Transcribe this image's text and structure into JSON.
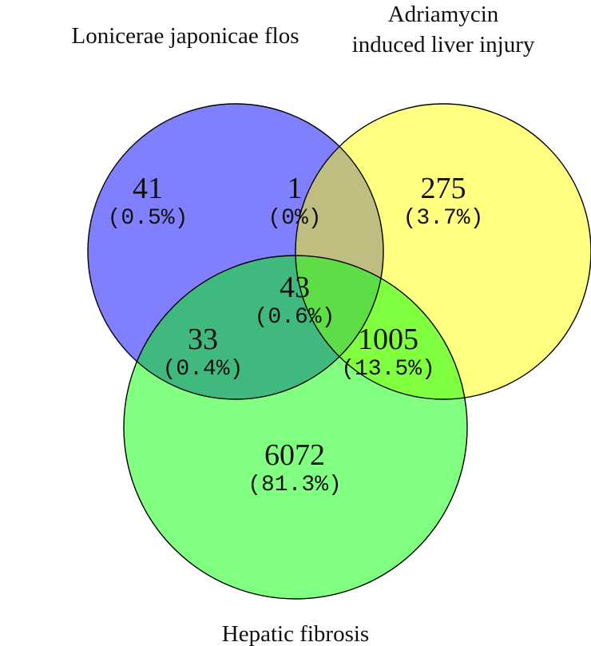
{
  "sets": [
    {
      "name": "Lonicerae japonicae flos",
      "color": "#8080ff"
    },
    {
      "name": "Adriamycin induced liver injury",
      "name_lines": [
        "Adriamycin",
        "induced liver injury"
      ],
      "color": "#ffff80"
    },
    {
      "name": "Hepatic fibrosis",
      "color": "#80ff80"
    }
  ],
  "regions": {
    "flos_only": {
      "count": "41",
      "percent": "(0.5%)",
      "color": "#7f7fff"
    },
    "flos_liver": {
      "count": "1",
      "percent": "(0%)",
      "color": "#bfbe80"
    },
    "liver_only": {
      "count": "275",
      "percent": "(3.7%)",
      "color": "#ffff80"
    },
    "all_three": {
      "count": "43",
      "percent": "(0.6%)",
      "color": "#5fdd46"
    },
    "flos_fibrosis": {
      "count": "33",
      "percent": "(0.4%)",
      "color": "#40b97f"
    },
    "liver_fibrosis": {
      "count": "1005",
      "percent": "(13.5%)",
      "color": "#80ff3f"
    },
    "fibrosis_only": {
      "count": "6072",
      "percent": "(81.3%)",
      "color": "#80ff80"
    }
  }
}
